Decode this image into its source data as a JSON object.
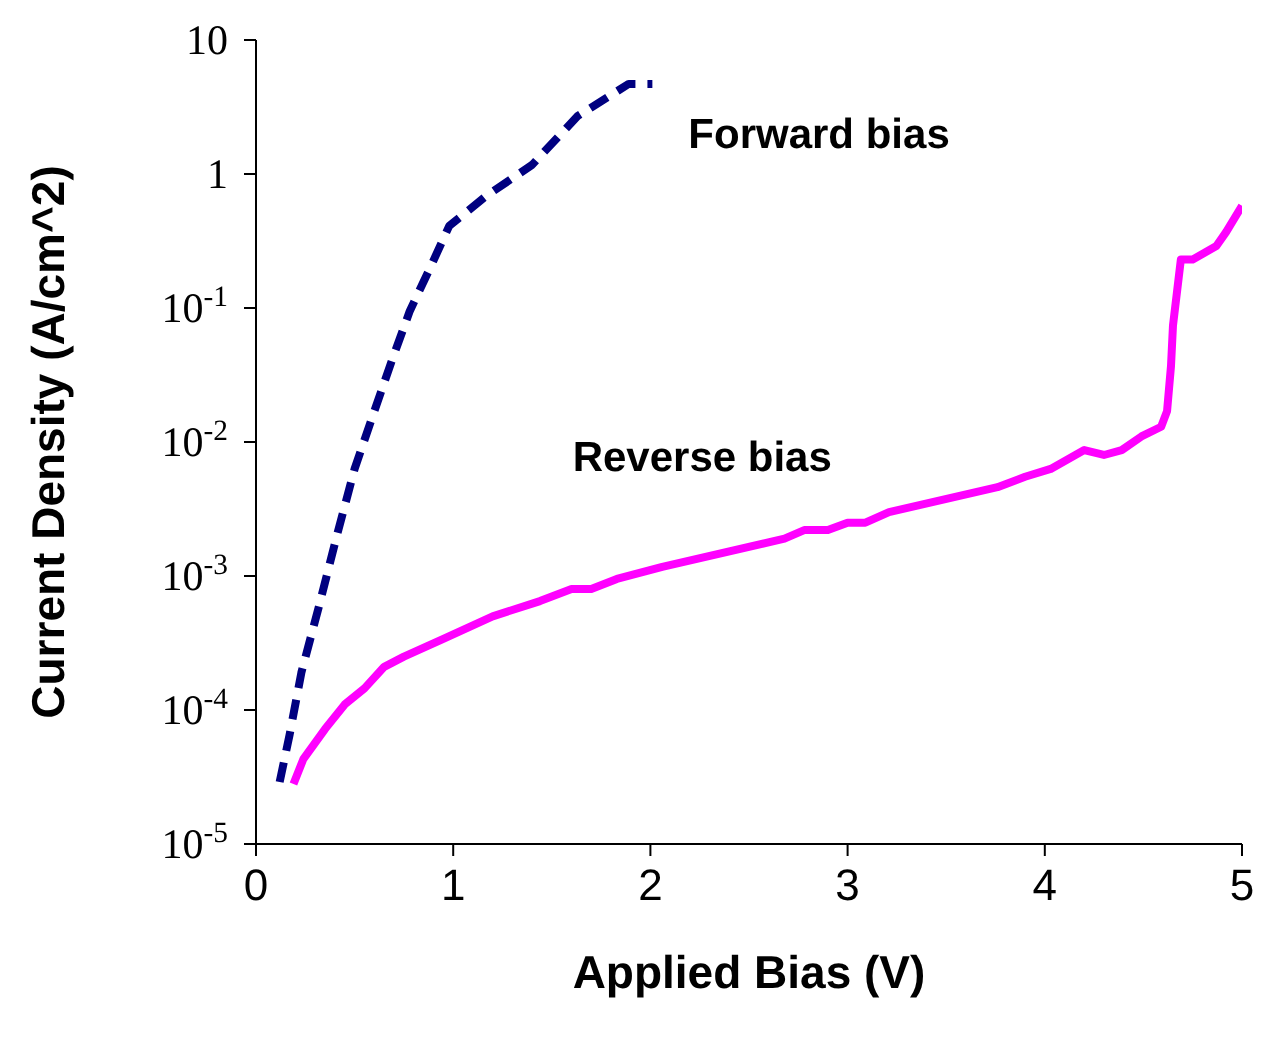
{
  "chart_data": {
    "type": "line",
    "xlabel": "Applied Bias (V)",
    "ylabel": "Current Density (A/cm^2)",
    "log": "y",
    "marker": "none",
    "xlim": [
      0,
      5
    ],
    "xticks": [
      0,
      1,
      2,
      3,
      4,
      5
    ],
    "ylim": [
      1e-05,
      10
    ],
    "yticks": [
      {
        "value": 1e-05,
        "label": "10$^{-5}$"
      },
      {
        "value": 0.0001,
        "label": "10$^{-4}$"
      },
      {
        "value": 0.001,
        "label": "10$^{-3}$"
      },
      {
        "value": 0.01,
        "label": "10$^{-2}$"
      },
      {
        "value": 0.1,
        "label": "10$^{-1}$"
      },
      1,
      10
    ],
    "series": [
      {
        "name": "Forward bias",
        "color": "#000080",
        "line_style": "dashed",
        "x": [
          0.12,
          0.17,
          0.23,
          0.32,
          0.41,
          0.5,
          0.6,
          0.69,
          0.78,
          0.89,
          0.98,
          1.17,
          1.4,
          1.63,
          1.89,
          2.01
        ],
        "values": [
          2.9e-05,
          6.5e-05,
          0.00019,
          0.0006,
          0.002,
          0.0063,
          0.017,
          0.041,
          0.095,
          0.21,
          0.41,
          0.69,
          1.17,
          2.7,
          4.7,
          4.7
        ]
      },
      {
        "name": "Reverse bias",
        "color": "#ff00ff",
        "line_style": "solid",
        "x": [
          0.19,
          0.24,
          0.35,
          0.45,
          0.55,
          0.65,
          0.75,
          0.95,
          1.2,
          1.44,
          1.6,
          1.7,
          1.83,
          2.06,
          2.68,
          2.78,
          2.9,
          3.0,
          3.09,
          3.21,
          3.76,
          3.9,
          4.03,
          4.2,
          4.3,
          4.39,
          4.49,
          4.59,
          4.62,
          4.64,
          4.65,
          4.69,
          4.75,
          4.87,
          4.92,
          5.0
        ],
        "values": [
          2.8e-05,
          4.3e-05,
          7.2e-05,
          0.00011,
          0.000145,
          0.00021,
          0.00025,
          0.00034,
          0.0005,
          0.00065,
          0.0008,
          0.0008,
          0.00095,
          0.00117,
          0.0019,
          0.0022,
          0.0022,
          0.0025,
          0.0025,
          0.003,
          0.0046,
          0.0055,
          0.0063,
          0.0087,
          0.008,
          0.0087,
          0.011,
          0.013,
          0.017,
          0.037,
          0.074,
          0.23,
          0.23,
          0.29,
          0.37,
          0.58
        ]
      }
    ]
  }
}
